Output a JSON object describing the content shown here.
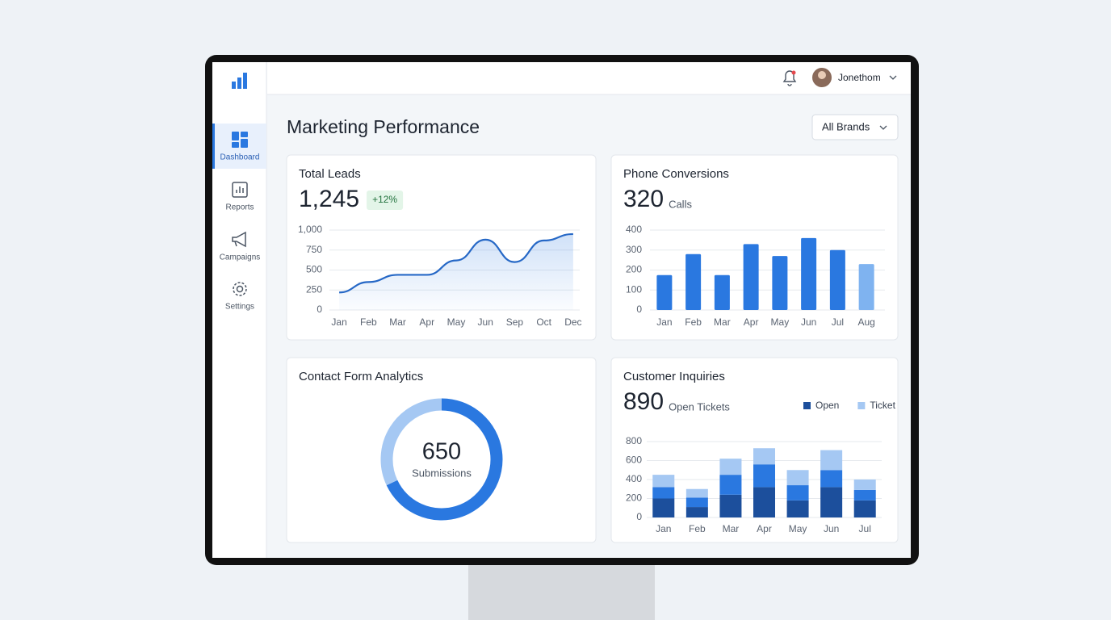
{
  "sidebar": {
    "nav": [
      "Dashboard",
      "Reports",
      "Campaigns",
      "Settings"
    ]
  },
  "header": {
    "user": "Jonethom"
  },
  "page": {
    "title": "Marketing Performance",
    "filter": "All Brands"
  },
  "cards": [
    {
      "title": "Total Leads",
      "kpi": "1,245",
      "badge": "+12%",
      "chart_data": {
        "type": "line",
        "categories": [
          "Jan",
          "Feb",
          "Mar",
          "Apr",
          "May",
          "Jun",
          "Sep",
          "Oct",
          "Dec"
        ],
        "values": [
          220,
          350,
          440,
          440,
          620,
          880,
          600,
          870,
          950
        ],
        "color": "#2668c6",
        "ylim": [
          0,
          1000
        ],
        "yticks": [
          0,
          250,
          500,
          750,
          {
            "value": 1000,
            "label": "1,000"
          }
        ],
        "grid": true
      }
    },
    {
      "title": "Phone Conversions",
      "kpi": "320",
      "kpi_unit": "Calls",
      "chart_data": {
        "type": "bar",
        "categories": [
          "Jan",
          "Feb",
          "Mar",
          "Apr",
          "May",
          "Jun",
          "Jul",
          "Aug"
        ],
        "values": [
          175,
          280,
          175,
          330,
          270,
          360,
          300,
          230
        ],
        "colors": [
          "#2a78e0",
          "#2a78e0",
          "#2a78e0",
          "#2a78e0",
          "#2a78e0",
          "#2a78e0",
          "#2a78e0",
          "#7fb3f0"
        ],
        "ylim": [
          0,
          400
        ],
        "yticks": [
          0,
          100,
          200,
          300,
          400
        ],
        "grid": true
      }
    },
    {
      "title": "Contact Form Analytics",
      "kpi": "650",
      "kpi_unit": "Submissions",
      "chart_data": {
        "type": "pie",
        "donut": true,
        "values": [
          68,
          32
        ],
        "colors": [
          "#2a78e0",
          "#a5c8f3"
        ]
      }
    },
    {
      "title": "Customer Inquiries",
      "kpi": "890",
      "kpi_unit": "Open Tickets",
      "chart_data": {
        "type": "stacked_bar",
        "categories": [
          "Jan",
          "Feb",
          "Mar",
          "Apr",
          "May",
          "Jun",
          "Jul"
        ],
        "series": [
          {
            "name": "Open",
            "color": "#1c4f9c",
            "values": [
              200,
              110,
              240,
              320,
              180,
              320,
              180
            ]
          },
          {
            "color": "#2a78e0",
            "values": [
              120,
              100,
              210,
              240,
              160,
              180,
              110
            ]
          },
          {
            "name": "Ticket",
            "color": "#a5c8f3",
            "values": [
              130,
              90,
              170,
              170,
              160,
              210,
              110
            ]
          }
        ],
        "ylim": [
          0,
          800
        ],
        "yticks": [
          0,
          200,
          400,
          600,
          800
        ],
        "grid": true
      }
    }
  ]
}
